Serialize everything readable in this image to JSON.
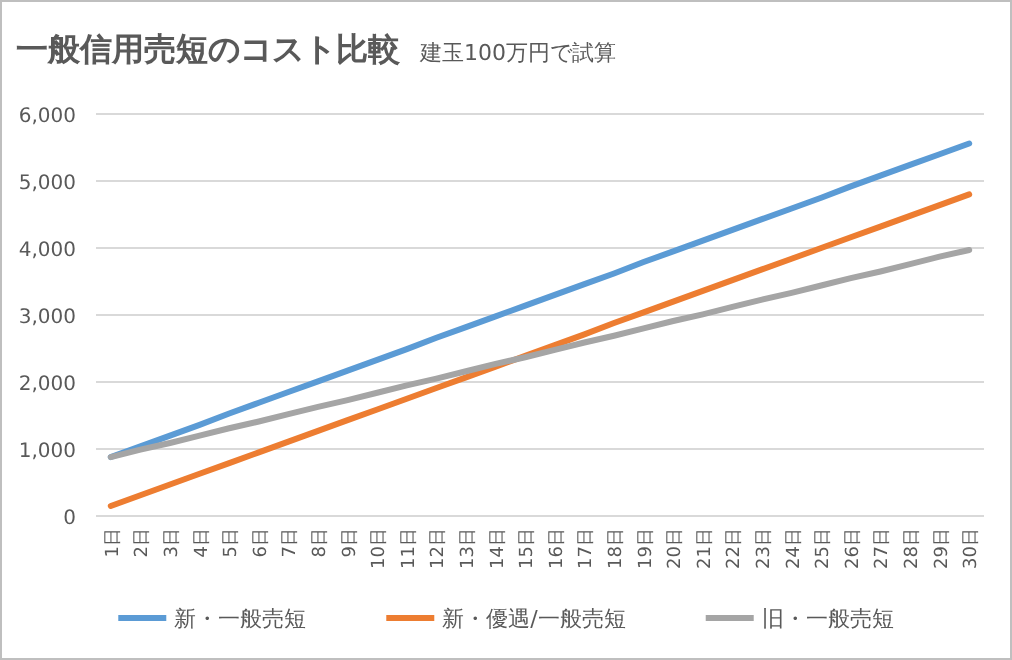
{
  "chart_data": {
    "type": "line",
    "title": "一般信用売短のコスト比較",
    "subtitle": "建玉100万円で試算",
    "categories": [
      "1日",
      "2日",
      "3日",
      "4日",
      "5日",
      "6日",
      "7日",
      "8日",
      "9日",
      "10日",
      "11日",
      "12日",
      "13日",
      "14日",
      "15日",
      "16日",
      "17日",
      "18日",
      "19日",
      "20日",
      "21日",
      "22日",
      "23日",
      "24日",
      "25日",
      "26日",
      "27日",
      "28日",
      "29日",
      "30日"
    ],
    "series": [
      {
        "name": "新・一般売短",
        "color": "#5b9bd5",
        "values": [
          880,
          1040,
          1200,
          1360,
          1530,
          1690,
          1850,
          2010,
          2170,
          2330,
          2490,
          2660,
          2820,
          2980,
          3140,
          3300,
          3460,
          3620,
          3790,
          3950,
          4110,
          4270,
          4430,
          4590,
          4750,
          4920,
          5080,
          5240,
          5400,
          5560
        ]
      },
      {
        "name": "新・優遇/一般売短",
        "color": "#ed7d31",
        "values": [
          150,
          310,
          470,
          630,
          790,
          950,
          1110,
          1270,
          1430,
          1590,
          1750,
          1910,
          2070,
          2230,
          2390,
          2550,
          2710,
          2880,
          3040,
          3200,
          3360,
          3520,
          3680,
          3840,
          4000,
          4160,
          4320,
          4480,
          4640,
          4800
        ]
      },
      {
        "name": "旧・一般売短",
        "color": "#a5a5a5",
        "values": [
          880,
          990,
          1090,
          1200,
          1310,
          1410,
          1520,
          1630,
          1730,
          1840,
          1950,
          2050,
          2160,
          2270,
          2370,
          2480,
          2590,
          2690,
          2800,
          2910,
          3010,
          3120,
          3230,
          3330,
          3440,
          3550,
          3650,
          3760,
          3870,
          3970
        ]
      }
    ],
    "ylim": [
      0,
      6000
    ],
    "yticks": [
      {
        "value": 0,
        "label": "0"
      },
      {
        "value": 1000,
        "label": "1,000"
      },
      {
        "value": 2000,
        "label": "2,000"
      },
      {
        "value": 3000,
        "label": "3,000"
      },
      {
        "value": 4000,
        "label": "4,000"
      },
      {
        "value": 5000,
        "label": "5,000"
      },
      {
        "value": 6000,
        "label": "6,000"
      }
    ],
    "grid": "y",
    "legend": "bottom",
    "marker": "none",
    "line_style": "solid"
  }
}
